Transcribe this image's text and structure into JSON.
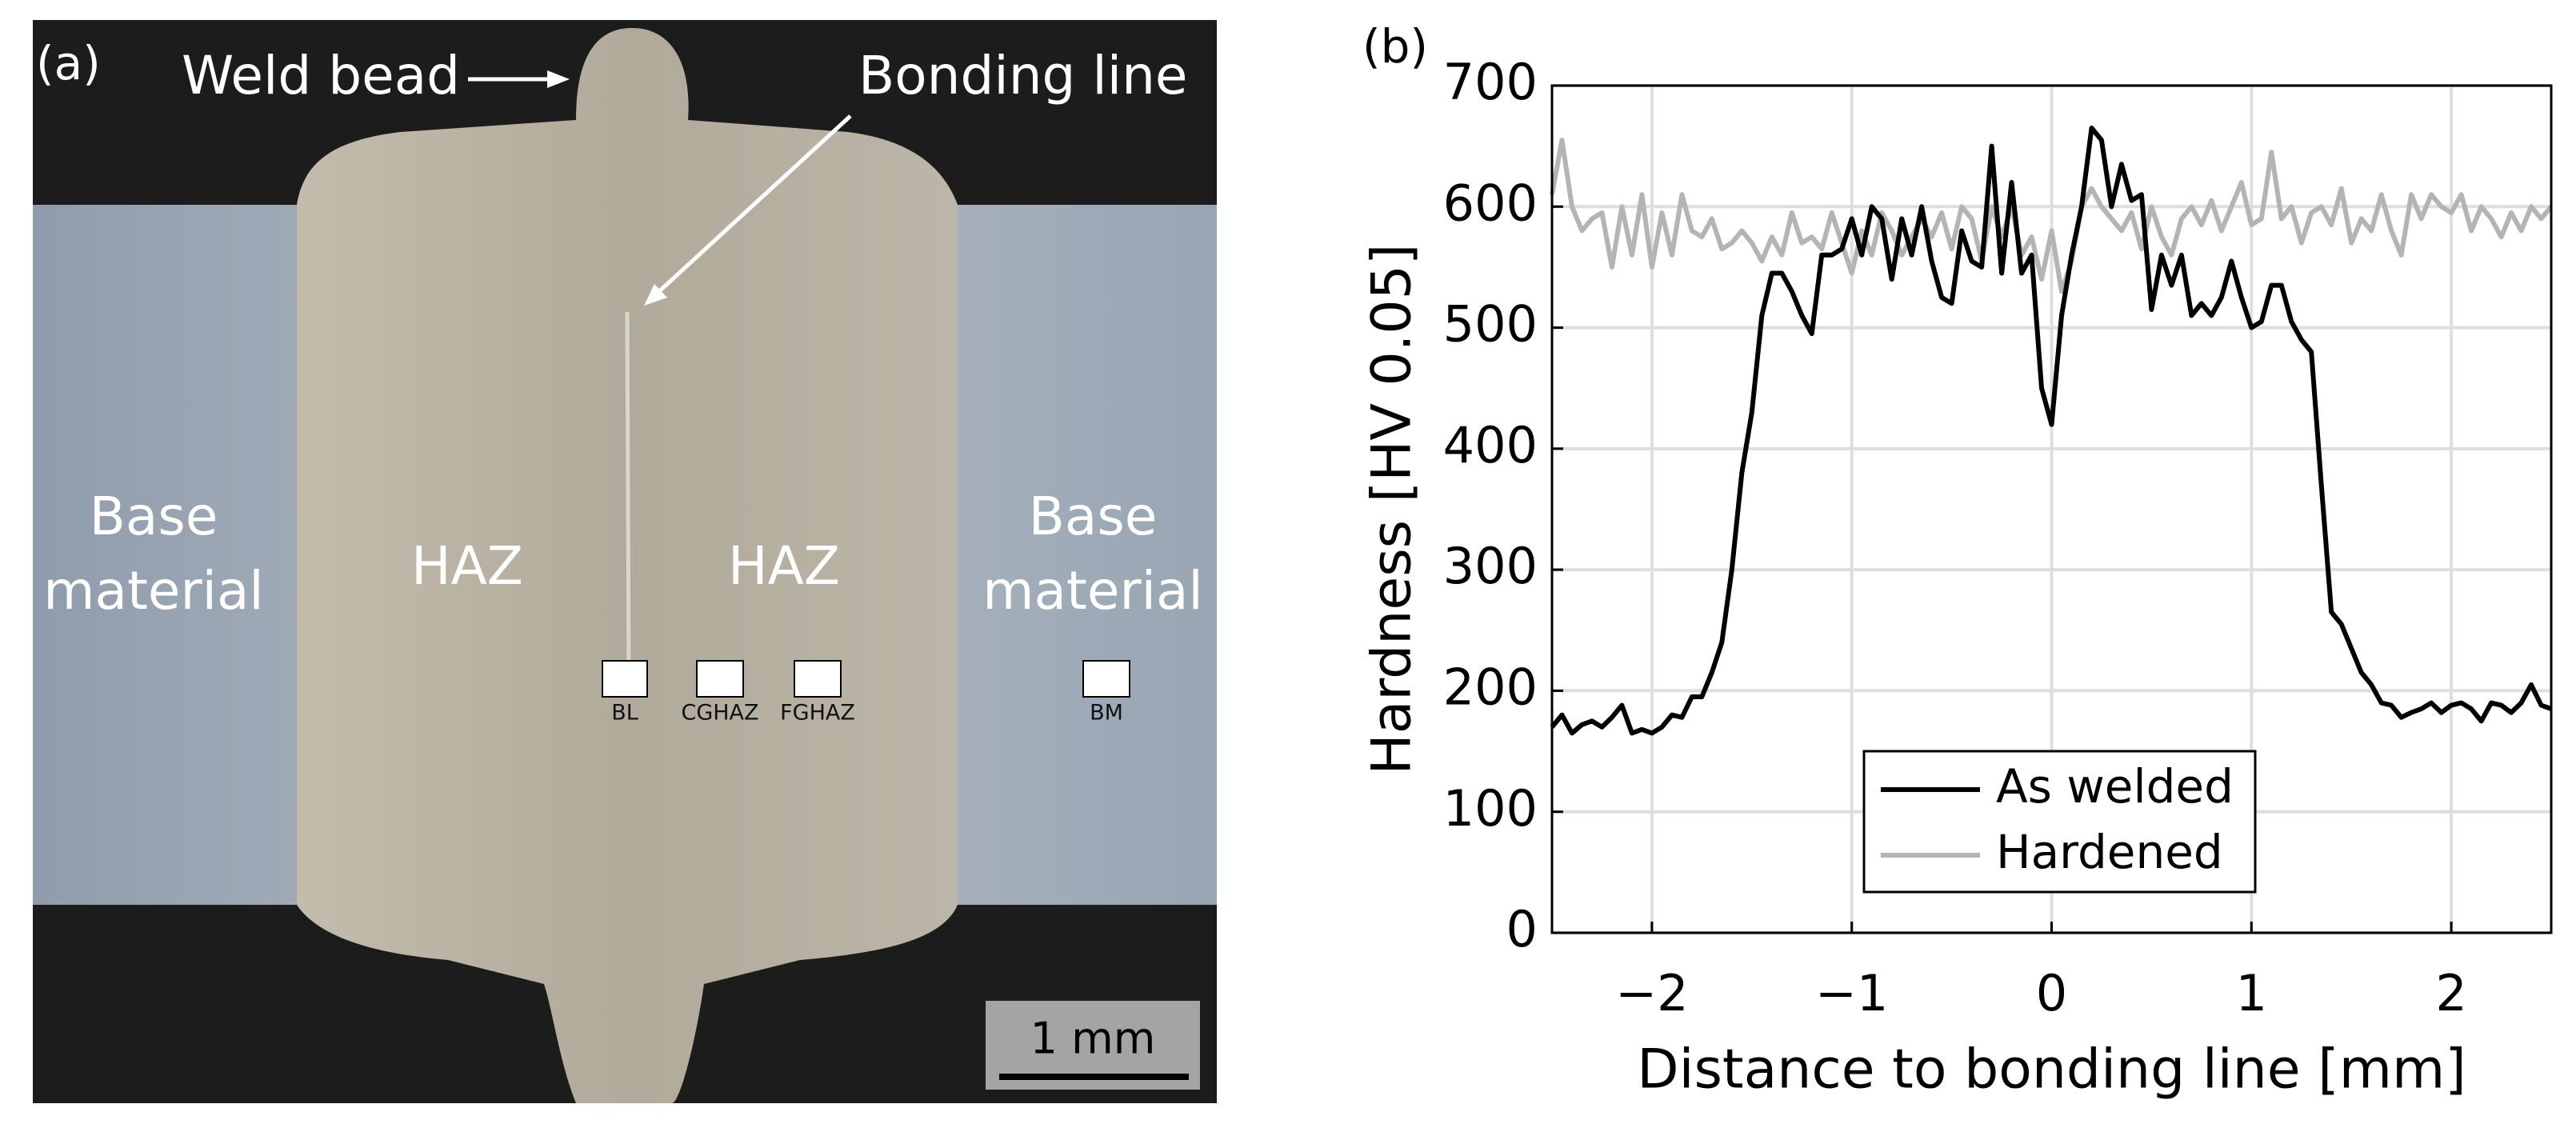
{
  "panel_a": {
    "label": "(a)",
    "weld_bead": "Weld bead",
    "bonding_line": "Bonding line",
    "base_left": [
      "Base",
      "material"
    ],
    "base_right": [
      "Base",
      "material"
    ],
    "haz_left": "HAZ",
    "haz_right": "HAZ",
    "markers": [
      "BL",
      "CGHAZ",
      "FGHAZ",
      "BM"
    ],
    "scale_bar": "1 mm"
  },
  "chart_data": {
    "type": "line",
    "panel_label": "(b)",
    "xlabel": "Distance to bonding line [mm]",
    "ylabel": "Hardness [HV 0.05]",
    "xlim": [
      -2.5,
      2.5
    ],
    "ylim": [
      0,
      700
    ],
    "xticks": [
      {
        "value": -2,
        "label": "−2"
      },
      {
        "value": -1,
        "label": "−1"
      },
      0,
      1,
      2
    ],
    "yticks": [
      0,
      100,
      200,
      300,
      400,
      500,
      600,
      700
    ],
    "grid": true,
    "legend": "lower center",
    "x": [
      -2.5,
      -2.45,
      -2.4,
      -2.35,
      -2.3,
      -2.25,
      -2.2,
      -2.15,
      -2.1,
      -2.05,
      -2.0,
      -1.95,
      -1.9,
      -1.85,
      -1.8,
      -1.75,
      -1.7,
      -1.65,
      -1.6,
      -1.55,
      -1.5,
      -1.45,
      -1.4,
      -1.35,
      -1.3,
      -1.25,
      -1.2,
      -1.15,
      -1.1,
      -1.05,
      -1.0,
      -0.95,
      -0.9,
      -0.85,
      -0.8,
      -0.75,
      -0.7,
      -0.65,
      -0.6,
      -0.55,
      -0.5,
      -0.45,
      -0.4,
      -0.35,
      -0.3,
      -0.25,
      -0.2,
      -0.15,
      -0.1,
      -0.05,
      0,
      0.05,
      0.1,
      0.15,
      0.2,
      0.25,
      0.3,
      0.35,
      0.4,
      0.45,
      0.5,
      0.55,
      0.6,
      0.65,
      0.7,
      0.75,
      0.8,
      0.85,
      0.9,
      0.95,
      1.0,
      1.05,
      1.1,
      1.15,
      1.2,
      1.25,
      1.3,
      1.35,
      1.4,
      1.45,
      1.5,
      1.55,
      1.6,
      1.65,
      1.7,
      1.75,
      1.8,
      1.85,
      1.9,
      1.95,
      2.0,
      2.05,
      2.1,
      2.15,
      2.2,
      2.25,
      2.3,
      2.35,
      2.4,
      2.45,
      2.5
    ],
    "series": [
      {
        "name": "As welded",
        "color": "#000000",
        "values": [
          170,
          180,
          165,
          172,
          175,
          170,
          178,
          188,
          165,
          168,
          165,
          170,
          180,
          178,
          195,
          195,
          215,
          240,
          300,
          380,
          430,
          510,
          545,
          545,
          530,
          510,
          495,
          560,
          560,
          565,
          590,
          560,
          600,
          590,
          540,
          590,
          560,
          600,
          555,
          525,
          520,
          580,
          555,
          550,
          650,
          545,
          620,
          545,
          560,
          450,
          420,
          510,
          560,
          600,
          665,
          655,
          600,
          635,
          605,
          610,
          515,
          560,
          535,
          560,
          510,
          520,
          510,
          525,
          555,
          525,
          500,
          505,
          535,
          535,
          505,
          490,
          480,
          370,
          265,
          255,
          235,
          215,
          205,
          190,
          188,
          178,
          182,
          185,
          190,
          182,
          188,
          190,
          185,
          175,
          190,
          188,
          182,
          190,
          205,
          188,
          185
        ]
      },
      {
        "name": "Hardened",
        "color": "#b4b4b4",
        "values": [
          610,
          655,
          600,
          580,
          590,
          595,
          550,
          600,
          560,
          610,
          550,
          595,
          560,
          610,
          580,
          575,
          590,
          565,
          570,
          580,
          570,
          555,
          575,
          560,
          595,
          570,
          575,
          565,
          595,
          570,
          545,
          580,
          560,
          595,
          580,
          560,
          575,
          590,
          575,
          595,
          565,
          600,
          590,
          555,
          600,
          575,
          600,
          560,
          575,
          540,
          580,
          530,
          555,
          600,
          615,
          600,
          590,
          580,
          595,
          565,
          600,
          575,
          560,
          590,
          600,
          585,
          605,
          580,
          600,
          620,
          585,
          590,
          645,
          590,
          600,
          570,
          595,
          600,
          585,
          615,
          570,
          590,
          580,
          610,
          580,
          560,
          610,
          590,
          610,
          600,
          595,
          610,
          580,
          600,
          590,
          575,
          595,
          580,
          600,
          590,
          600
        ]
      }
    ]
  }
}
